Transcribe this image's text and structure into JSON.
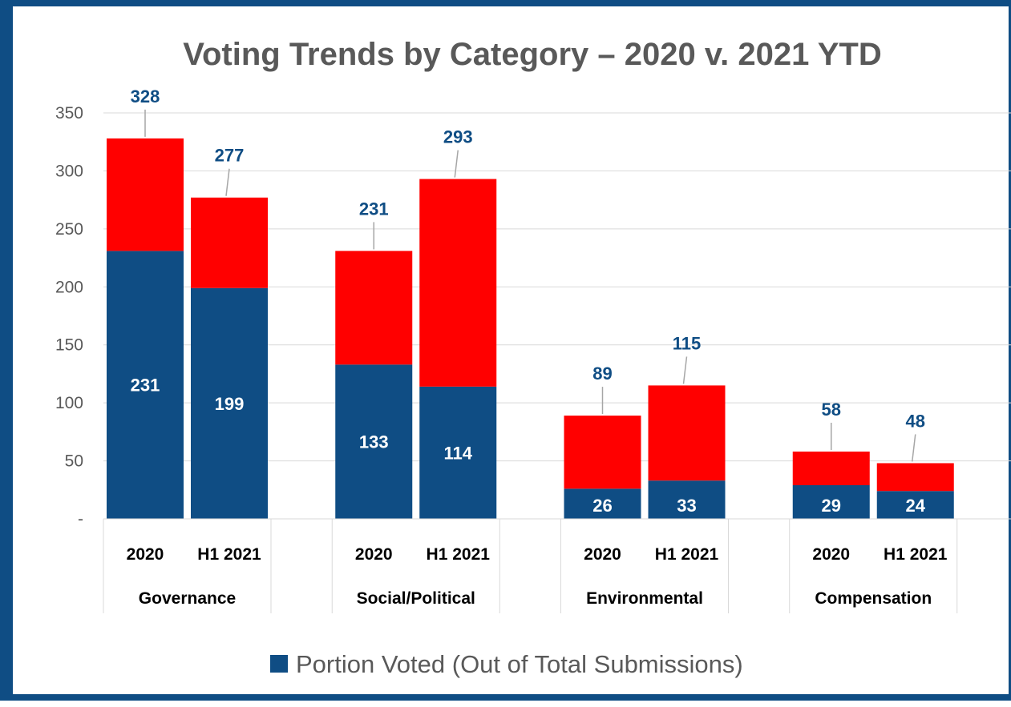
{
  "chart_data": {
    "type": "bar",
    "stacked": true,
    "title": "Voting Trends by Category – 2020 v. 2021 YTD",
    "groups": [
      "Governance",
      "Social/Political",
      "Environmental",
      "Compensation"
    ],
    "periods": [
      "2020",
      "H1 2021"
    ],
    "series": [
      {
        "name": "Portion Voted (Out of Total Submissions)",
        "color": "#0f4d84",
        "values": [
          [
            231,
            199
          ],
          [
            133,
            114
          ],
          [
            26,
            33
          ],
          [
            29,
            24
          ]
        ]
      },
      {
        "color": "#ff0000",
        "values": [
          [
            97,
            78
          ],
          [
            98,
            179
          ],
          [
            63,
            82
          ],
          [
            29,
            24
          ]
        ]
      }
    ],
    "totals": [
      [
        328,
        277
      ],
      [
        231,
        293
      ],
      [
        89,
        115
      ],
      [
        58,
        48
      ]
    ],
    "ylim": [
      0,
      350
    ],
    "yticks": [
      0,
      50,
      100,
      150,
      200,
      250,
      300,
      350
    ],
    "ytick_labels": [
      "-",
      "50",
      "100",
      "150",
      "200",
      "250",
      "300",
      "350"
    ],
    "grid": true,
    "legend": "bottom"
  }
}
